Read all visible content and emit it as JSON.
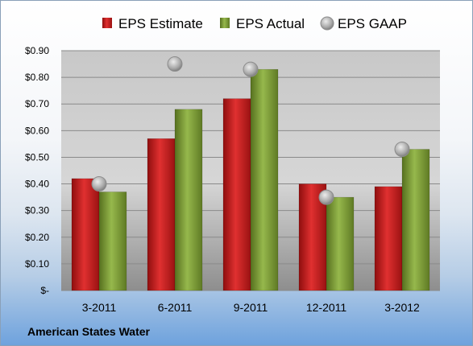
{
  "chart_data": {
    "type": "bar",
    "categories": [
      "3-2011",
      "6-2011",
      "9-2011",
      "12-2011",
      "3-2012"
    ],
    "series": [
      {
        "name": "EPS Estimate",
        "kind": "bar",
        "color": "#c81e1e",
        "values": [
          0.42,
          0.57,
          0.72,
          0.4,
          0.39
        ]
      },
      {
        "name": "EPS Actual",
        "kind": "bar",
        "color": "#7a9a34",
        "values": [
          0.37,
          0.68,
          0.83,
          0.35,
          0.53
        ]
      },
      {
        "name": "EPS GAAP",
        "kind": "marker",
        "color": "#b4b4b4",
        "values": [
          0.4,
          0.85,
          0.83,
          0.35,
          0.53
        ]
      }
    ],
    "y_ticks": [
      {
        "value": 0.0,
        "label": "$-"
      },
      {
        "value": 0.1,
        "label": "$0.10"
      },
      {
        "value": 0.2,
        "label": "$0.20"
      },
      {
        "value": 0.3,
        "label": "$0.30"
      },
      {
        "value": 0.4,
        "label": "$0.40"
      },
      {
        "value": 0.5,
        "label": "$0.50"
      },
      {
        "value": 0.6,
        "label": "$0.60"
      },
      {
        "value": 0.7,
        "label": "$0.70"
      },
      {
        "value": 0.8,
        "label": "$0.80"
      },
      {
        "value": 0.9,
        "label": "$0.90"
      }
    ],
    "ylim": [
      0,
      0.9
    ],
    "grid": true,
    "legend_position": "top",
    "xlabel": "",
    "ylabel": ""
  },
  "footer": {
    "company": "American States Water"
  }
}
